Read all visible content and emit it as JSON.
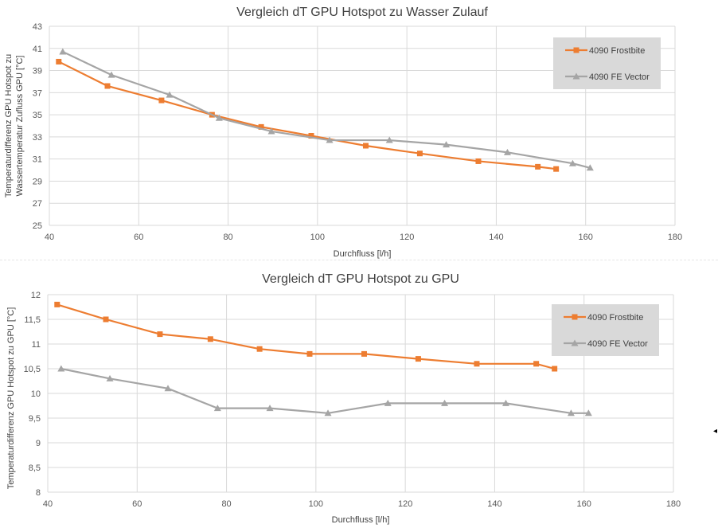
{
  "colors": {
    "frostbite": "#ED7D31",
    "vector": "#A5A5A5",
    "grid": "#D9D9D9",
    "legend_bg": "#D9D9D9",
    "text": "#595959"
  },
  "chart_data": [
    {
      "type": "line",
      "title": "Vergleich dT GPU Hotspot zu Wasser Zulauf",
      "xlabel": "Durchfluss [l/h]",
      "ylabel": [
        "Temperaturdifferenz GPU Hotspot zu",
        "Wassertemperatur Zufluss GPU [°C]"
      ],
      "xlim": [
        40,
        180
      ],
      "xticks": [
        40,
        60,
        80,
        100,
        120,
        140,
        160,
        180
      ],
      "ylim": [
        25,
        43
      ],
      "yticks": [
        25,
        27,
        29,
        31,
        33,
        35,
        37,
        39,
        41,
        43
      ],
      "ytick_labels": [
        "25",
        "27",
        "29",
        "31",
        "33",
        "35",
        "37",
        "39",
        "41",
        "43"
      ],
      "grid": true,
      "legend": "top-right",
      "series": [
        {
          "name": "4090 Frostbite",
          "marker": "square",
          "x": [
            42.1,
            53.0,
            65.1,
            76.4,
            87.4,
            98.6,
            110.8,
            122.9,
            136.0,
            149.3,
            153.4
          ],
          "y": [
            39.8,
            37.6,
            36.3,
            35.0,
            33.9,
            33.1,
            32.2,
            31.5,
            30.8,
            30.3,
            30.1
          ]
        },
        {
          "name": "4090 FE Vector",
          "marker": "triangle",
          "x": [
            43.0,
            53.9,
            66.9,
            78.0,
            89.7,
            102.7,
            116.1,
            128.8,
            142.5,
            157.1,
            161.0
          ],
          "y": [
            40.7,
            38.6,
            36.8,
            34.7,
            33.5,
            32.7,
            32.7,
            32.3,
            31.6,
            30.6,
            30.2
          ]
        }
      ]
    },
    {
      "type": "line",
      "title": "Vergleich dT GPU Hotspot zu GPU",
      "xlabel": "Durchfluss [l/h]",
      "ylabel": [
        "Temperaturdifferenz GPU Hotspot zu  GPU [°C]"
      ],
      "xlim": [
        40,
        180
      ],
      "xticks": [
        40,
        60,
        80,
        100,
        120,
        140,
        160,
        180
      ],
      "ylim": [
        8,
        12
      ],
      "yticks": [
        8,
        8.5,
        9,
        9.5,
        10,
        10.5,
        11,
        11.5,
        12
      ],
      "ytick_labels": [
        "8",
        "8,5",
        "9",
        "9,5",
        "10",
        "10,5",
        "11",
        "11,5",
        "12"
      ],
      "grid": true,
      "legend": "top-right",
      "series": [
        {
          "name": "4090 Frostbite",
          "marker": "square",
          "x": [
            42.1,
            53.0,
            65.1,
            76.4,
            87.4,
            98.6,
            110.8,
            122.9,
            136.0,
            149.3,
            153.4
          ],
          "y": [
            11.8,
            11.5,
            11.2,
            11.1,
            10.9,
            10.8,
            10.8,
            10.7,
            10.6,
            10.6,
            10.5
          ]
        },
        {
          "name": "4090 FE Vector",
          "marker": "triangle",
          "x": [
            43.0,
            53.9,
            66.9,
            78.0,
            89.7,
            102.7,
            116.1,
            128.8,
            142.5,
            157.1,
            161.0
          ],
          "y": [
            10.5,
            10.3,
            10.1,
            9.7,
            9.7,
            9.6,
            9.8,
            9.8,
            9.8,
            9.6,
            9.6
          ]
        }
      ]
    }
  ]
}
